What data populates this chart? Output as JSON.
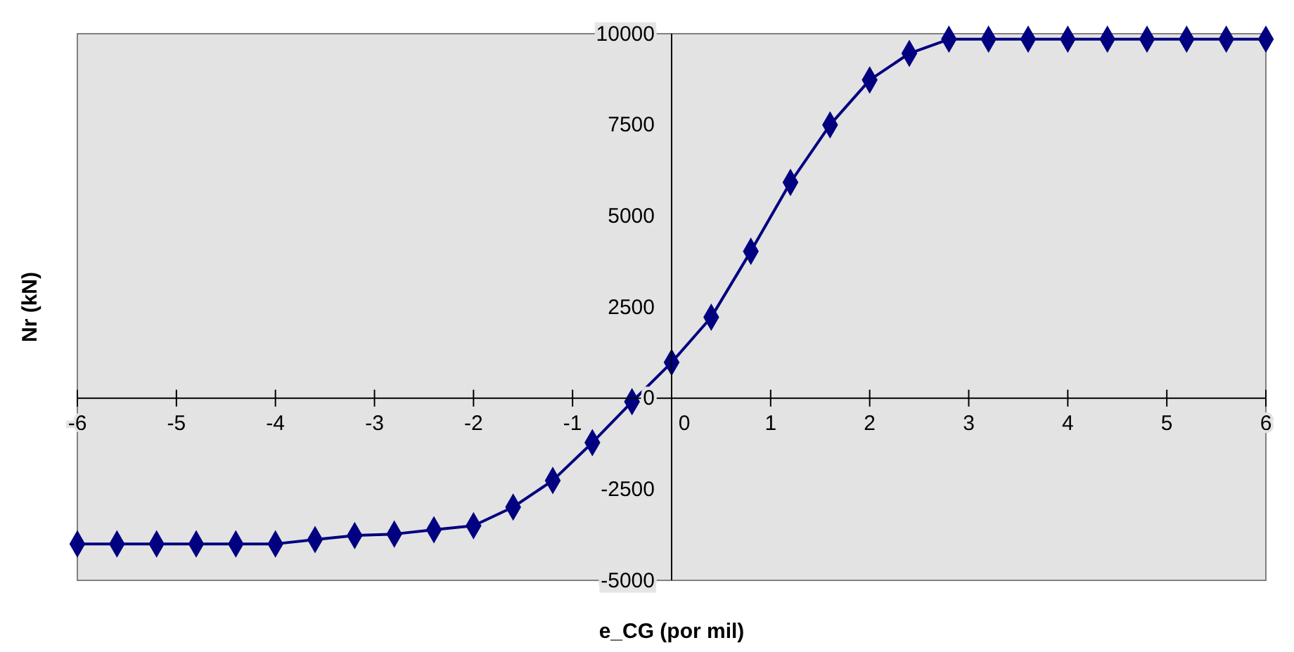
{
  "chart_data": {
    "type": "line",
    "xlabel": "e_CG (por mil)",
    "ylabel": "Nr (kN)",
    "x": [
      -6,
      -5.6,
      -5.2,
      -4.8,
      -4.4,
      -4,
      -3.6,
      -3.2,
      -2.8,
      -2.4,
      -2,
      -1.6,
      -1.2,
      -0.8,
      -0.4,
      0,
      0.4,
      0.8,
      1.2,
      1.6,
      2,
      2.4,
      2.8,
      3.2,
      3.6,
      4,
      4.4,
      4.8,
      5.2,
      5.6,
      6
    ],
    "series": [
      {
        "color": "#000080",
        "values": [
          -4000,
          -4000,
          -4000,
          -4000,
          -4000,
          -4000,
          -3880,
          -3770,
          -3730,
          -3610,
          -3500,
          -2990,
          -2260,
          -1220,
          -100,
          980,
          2220,
          4030,
          5920,
          7500,
          8730,
          9460,
          9850,
          9850,
          9850,
          9850,
          9850,
          9850,
          9850,
          9850,
          9850
        ]
      }
    ],
    "xlim": [
      -6,
      6
    ],
    "xticks": [
      -6,
      -5,
      -4,
      -3,
      -2,
      -1,
      0,
      1,
      2,
      3,
      4,
      5,
      6
    ],
    "ylim": [
      -5000,
      10000
    ],
    "yticks": [
      -5000,
      -2500,
      0,
      2500,
      5000,
      7500,
      10000
    ],
    "grid": false,
    "marker": "diamond",
    "line_style": "solid"
  }
}
